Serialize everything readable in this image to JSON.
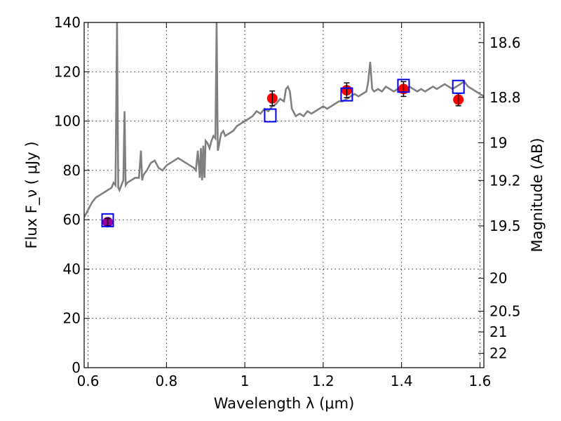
{
  "chart_data": {
    "type": "line",
    "xlabel": "Wavelength  λ (μm)",
    "ylabel": "Flux  F_ν  ( μJy )",
    "y2label": "Magnitude (AB)",
    "xlim": [
      0.59,
      1.61
    ],
    "ylim": [
      0,
      140
    ],
    "grid": true,
    "x_ticks": [
      0.6,
      0.8,
      1.0,
      1.2,
      1.4,
      1.6
    ],
    "x_tick_labels": [
      "0.6",
      "0.8",
      "1",
      "1.2",
      "1.4",
      "1.6"
    ],
    "y_ticks": [
      0,
      20,
      40,
      60,
      80,
      100,
      120,
      140
    ],
    "y_tick_labels": [
      "0",
      "20",
      "40",
      "60",
      "80",
      "100",
      "120",
      "140"
    ],
    "y2_ticks": [
      {
        "label": "18.6",
        "flux": 131.8
      },
      {
        "label": "18.8",
        "flux": 109.6
      },
      {
        "label": "19",
        "flux": 91.2
      },
      {
        "label": "19.2",
        "flux": 75.9
      },
      {
        "label": "19.5",
        "flux": 57.5
      },
      {
        "label": "20",
        "flux": 36.3
      },
      {
        "label": "20.5",
        "flux": 22.9
      },
      {
        "label": "21",
        "flux": 14.5
      },
      {
        "label": "22",
        "flux": 5.8
      }
    ],
    "series": [
      {
        "kind": "spectrum",
        "color": "#808080",
        "x": [
          0.59,
          0.6,
          0.61,
          0.62,
          0.63,
          0.64,
          0.65,
          0.66,
          0.665,
          0.67,
          0.674,
          0.677,
          0.68,
          0.685,
          0.69,
          0.693,
          0.696,
          0.7,
          0.71,
          0.72,
          0.73,
          0.735,
          0.738,
          0.741,
          0.745,
          0.75,
          0.76,
          0.77,
          0.78,
          0.79,
          0.8,
          0.81,
          0.82,
          0.83,
          0.84,
          0.85,
          0.86,
          0.87,
          0.875,
          0.88,
          0.885,
          0.888,
          0.891,
          0.894,
          0.897,
          0.9,
          0.905,
          0.91,
          0.915,
          0.92,
          0.925,
          0.928,
          0.931,
          0.934,
          0.937,
          0.94,
          0.945,
          0.95,
          0.96,
          0.97,
          0.98,
          0.99,
          1.0,
          1.01,
          1.02,
          1.03,
          1.04,
          1.05,
          1.06,
          1.07,
          1.08,
          1.09,
          1.1,
          1.105,
          1.11,
          1.115,
          1.12,
          1.13,
          1.14,
          1.15,
          1.16,
          1.17,
          1.18,
          1.19,
          1.2,
          1.21,
          1.22,
          1.23,
          1.24,
          1.25,
          1.26,
          1.27,
          1.28,
          1.29,
          1.3,
          1.31,
          1.315,
          1.32,
          1.325,
          1.33,
          1.34,
          1.35,
          1.36,
          1.37,
          1.38,
          1.39,
          1.4,
          1.41,
          1.42,
          1.43,
          1.44,
          1.45,
          1.46,
          1.47,
          1.48,
          1.49,
          1.5,
          1.51,
          1.52,
          1.53,
          1.54,
          1.55,
          1.56,
          1.57,
          1.58,
          1.59,
          1.6,
          1.61
        ],
        "y": [
          61,
          64,
          67,
          69,
          70,
          71,
          72,
          73,
          75,
          74,
          140,
          73,
          72,
          74,
          76,
          104,
          74,
          75,
          76,
          77,
          77,
          88,
          76,
          78,
          79,
          80,
          83,
          84,
          81,
          80,
          82,
          83,
          84,
          85,
          84,
          83,
          82,
          81,
          80,
          88,
          77,
          89,
          76,
          90,
          77,
          92,
          91,
          89,
          92,
          94,
          93,
          140,
          88,
          90,
          93,
          95,
          96,
          94,
          95,
          96,
          98,
          99,
          100,
          101,
          102,
          104,
          103,
          105,
          104,
          106,
          107,
          109,
          108,
          113,
          114,
          112,
          105,
          102,
          103,
          102,
          104,
          103,
          104,
          105,
          106,
          105,
          106,
          107,
          108,
          108,
          109,
          110,
          111,
          110,
          111,
          112,
          116,
          124,
          113,
          112,
          113,
          112,
          114,
          113,
          112,
          113,
          114,
          113,
          114,
          113,
          112,
          113,
          112,
          113,
          114,
          113,
          114,
          115,
          114,
          113,
          114,
          115,
          116,
          114,
          113,
          112,
          111,
          110
        ]
      },
      {
        "kind": "model-photometry",
        "marker": "open-square",
        "color": "#0000ff",
        "x": [
          0.65,
          1.065,
          1.26,
          1.405,
          1.545
        ],
        "y": [
          59.8,
          102.3,
          110.8,
          114.3,
          113.9
        ]
      },
      {
        "kind": "observed-photometry",
        "marker": "filled-circle",
        "color": "#ff0000",
        "x": [
          0.65,
          1.07,
          1.26,
          1.405,
          1.545
        ],
        "y": [
          59.0,
          109.2,
          112.5,
          113.0,
          108.7
        ],
        "yerr": [
          1.5,
          3.0,
          3.0,
          3.0,
          2.5
        ],
        "point_colors": [
          "#990099",
          "#ff0000",
          "#ff0000",
          "#ff0000",
          "#ff0000"
        ]
      }
    ]
  }
}
